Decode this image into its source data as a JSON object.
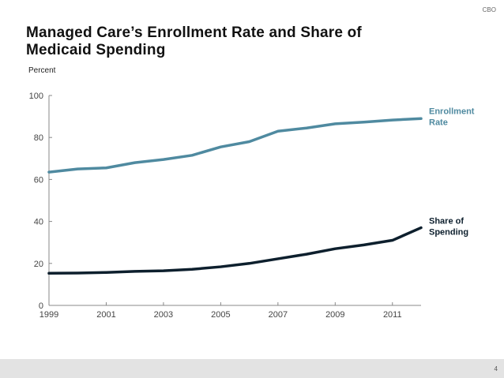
{
  "header": {
    "org_label": "CBO"
  },
  "slide": {
    "title_line1": "Managed Care’s Enrollment Rate and Share of",
    "title_line2": "Medicaid Spending",
    "page_number": "4"
  },
  "colors": {
    "enrollment": "#4f8aa0",
    "spending": "#0d1f2d",
    "axis": "#888888",
    "footer": "#e3e3e3"
  },
  "chart_data": {
    "type": "line",
    "title": "Managed Care’s Enrollment Rate and Share of Medicaid Spending",
    "xlabel": "",
    "ylabel": "Percent",
    "x": [
      1999,
      2000,
      2001,
      2002,
      2003,
      2004,
      2005,
      2006,
      2007,
      2008,
      2009,
      2010,
      2011,
      2012
    ],
    "xlim": [
      1999,
      2012
    ],
    "ylim": [
      0,
      100
    ],
    "xticks": [
      "1999",
      "2001",
      "2003",
      "2005",
      "2007",
      "2009",
      "2011"
    ],
    "yticks": [
      "0",
      "20",
      "40",
      "60",
      "80",
      "100"
    ],
    "grid": false,
    "legend": "inline-right",
    "series": [
      {
        "name": "Enrollment Rate",
        "label_lines": [
          "Enrollment",
          "Rate"
        ],
        "values": [
          63.5,
          65,
          65.5,
          68,
          69.5,
          71.5,
          75.5,
          78,
          83,
          84.5,
          86.5,
          87.3,
          88.3,
          89
        ]
      },
      {
        "name": "Share of Spending",
        "label_lines": [
          "Share of",
          "Spending"
        ],
        "values": [
          15.3,
          15.4,
          15.7,
          16.2,
          16.5,
          17.2,
          18.4,
          20,
          22.2,
          24.4,
          27,
          28.8,
          31,
          37
        ]
      }
    ]
  }
}
